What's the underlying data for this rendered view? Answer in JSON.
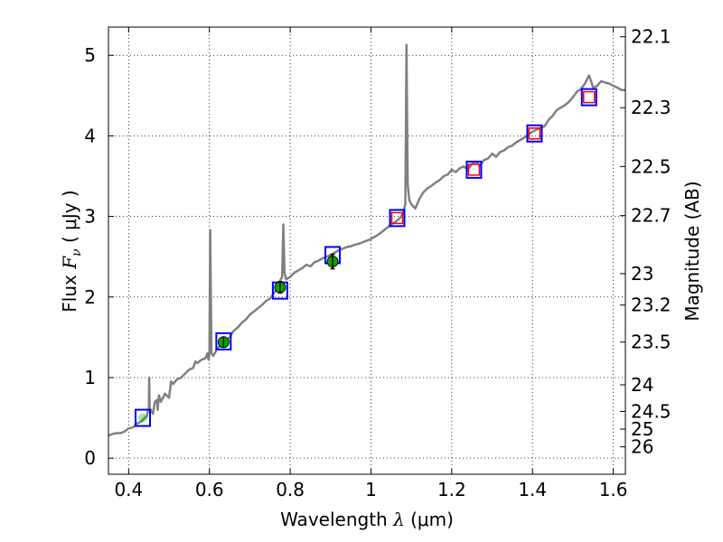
{
  "chart_data": {
    "type": "line",
    "xlabel": {
      "prefix": "Wavelength",
      "symbol": "λ",
      "unit": "(μm)"
    },
    "ylabel": {
      "prefix": "Flux",
      "symbol": "F",
      "subscript": "ν",
      "unit": "( μJy )"
    },
    "y2label": "Magnitude (AB)",
    "xlim": [
      0.35,
      1.63
    ],
    "ylim": [
      -0.2,
      5.35
    ],
    "grid": true,
    "x_ticks": [
      0.4,
      0.6,
      0.8,
      1.0,
      1.2,
      1.4,
      1.6
    ],
    "x_tick_labels": [
      "0.4",
      "0.6",
      "0.8",
      "1",
      "1.2",
      "1.4",
      "1.6"
    ],
    "y_ticks": [
      0,
      1,
      2,
      3,
      4,
      5
    ],
    "y_tick_labels": [
      "0",
      "1",
      "2",
      "3",
      "4",
      "5"
    ],
    "y2_ticks": [
      {
        "label": "22.1",
        "flux": 5.23
      },
      {
        "label": "22.3",
        "flux": 4.35
      },
      {
        "label": "22.5",
        "flux": 3.62
      },
      {
        "label": "22.7",
        "flux": 3.01
      },
      {
        "label": "23",
        "flux": 2.29
      },
      {
        "label": "23.2",
        "flux": 1.9
      },
      {
        "label": "23.5",
        "flux": 1.44
      },
      {
        "label": "24",
        "flux": 0.91
      },
      {
        "label": "24.5",
        "flux": 0.58
      },
      {
        "label": "25",
        "flux": 0.36
      },
      {
        "label": "26",
        "flux": 0.14
      }
    ],
    "series": [
      {
        "kind": "spectrum",
        "color": "#808080",
        "points": [
          [
            0.35,
            0.28
          ],
          [
            0.36,
            0.3
          ],
          [
            0.37,
            0.31
          ],
          [
            0.38,
            0.31
          ],
          [
            0.39,
            0.33
          ],
          [
            0.4,
            0.37
          ],
          [
            0.41,
            0.38
          ],
          [
            0.415,
            0.4
          ],
          [
            0.42,
            0.43
          ],
          [
            0.43,
            0.45
          ],
          [
            0.44,
            0.5
          ],
          [
            0.445,
            0.52
          ],
          [
            0.448,
            0.6
          ],
          [
            0.45,
            0.6
          ],
          [
            0.451,
            1.0
          ],
          [
            0.452,
            0.62
          ],
          [
            0.46,
            0.55
          ],
          [
            0.465,
            0.7
          ],
          [
            0.47,
            0.72
          ],
          [
            0.472,
            0.6
          ],
          [
            0.475,
            0.78
          ],
          [
            0.48,
            0.7
          ],
          [
            0.49,
            0.8
          ],
          [
            0.5,
            0.75
          ],
          [
            0.505,
            0.95
          ],
          [
            0.51,
            0.92
          ],
          [
            0.52,
            0.98
          ],
          [
            0.53,
            1.0
          ],
          [
            0.54,
            1.05
          ],
          [
            0.55,
            1.1
          ],
          [
            0.56,
            1.12
          ],
          [
            0.565,
            1.2
          ],
          [
            0.57,
            1.18
          ],
          [
            0.58,
            1.22
          ],
          [
            0.59,
            1.24
          ],
          [
            0.595,
            1.3
          ],
          [
            0.598,
            1.22
          ],
          [
            0.6,
            1.28
          ],
          [
            0.602,
            2.83
          ],
          [
            0.605,
            1.3
          ],
          [
            0.61,
            1.27
          ],
          [
            0.62,
            1.37
          ],
          [
            0.63,
            1.4
          ],
          [
            0.64,
            1.45
          ],
          [
            0.65,
            1.5
          ],
          [
            0.66,
            1.58
          ],
          [
            0.67,
            1.62
          ],
          [
            0.68,
            1.68
          ],
          [
            0.69,
            1.72
          ],
          [
            0.7,
            1.78
          ],
          [
            0.71,
            1.82
          ],
          [
            0.72,
            1.86
          ],
          [
            0.73,
            1.9
          ],
          [
            0.74,
            1.95
          ],
          [
            0.75,
            1.98
          ],
          [
            0.76,
            2.05
          ],
          [
            0.77,
            2.12
          ],
          [
            0.775,
            2.2
          ],
          [
            0.78,
            2.25
          ],
          [
            0.783,
            2.9
          ],
          [
            0.786,
            2.3
          ],
          [
            0.79,
            2.22
          ],
          [
            0.8,
            2.25
          ],
          [
            0.81,
            2.3
          ],
          [
            0.82,
            2.33
          ],
          [
            0.83,
            2.36
          ],
          [
            0.84,
            2.4
          ],
          [
            0.85,
            2.38
          ],
          [
            0.86,
            2.43
          ],
          [
            0.87,
            2.45
          ],
          [
            0.88,
            2.48
          ],
          [
            0.89,
            2.5
          ],
          [
            0.9,
            2.52
          ],
          [
            0.91,
            2.55
          ],
          [
            0.92,
            2.58
          ],
          [
            0.93,
            2.6
          ],
          [
            0.94,
            2.62
          ],
          [
            0.95,
            2.63
          ],
          [
            0.96,
            2.65
          ],
          [
            0.97,
            2.66
          ],
          [
            0.98,
            2.68
          ],
          [
            0.99,
            2.7
          ],
          [
            1.0,
            2.72
          ],
          [
            1.01,
            2.75
          ],
          [
            1.02,
            2.78
          ],
          [
            1.03,
            2.82
          ],
          [
            1.04,
            2.86
          ],
          [
            1.05,
            2.9
          ],
          [
            1.06,
            2.93
          ],
          [
            1.07,
            2.97
          ],
          [
            1.075,
            3.0
          ],
          [
            1.08,
            3.05
          ],
          [
            1.085,
            3.15
          ],
          [
            1.088,
            5.13
          ],
          [
            1.091,
            3.4
          ],
          [
            1.095,
            3.2
          ],
          [
            1.1,
            3.15
          ],
          [
            1.11,
            3.1
          ],
          [
            1.12,
            3.22
          ],
          [
            1.13,
            3.3
          ],
          [
            1.14,
            3.35
          ],
          [
            1.15,
            3.38
          ],
          [
            1.16,
            3.42
          ],
          [
            1.17,
            3.45
          ],
          [
            1.18,
            3.5
          ],
          [
            1.19,
            3.52
          ],
          [
            1.2,
            3.58
          ],
          [
            1.21,
            3.55
          ],
          [
            1.22,
            3.6
          ],
          [
            1.23,
            3.62
          ],
          [
            1.24,
            3.58
          ],
          [
            1.25,
            3.65
          ],
          [
            1.26,
            3.68
          ],
          [
            1.27,
            3.63
          ],
          [
            1.28,
            3.7
          ],
          [
            1.29,
            3.72
          ],
          [
            1.3,
            3.78
          ],
          [
            1.31,
            3.74
          ],
          [
            1.32,
            3.8
          ],
          [
            1.33,
            3.82
          ],
          [
            1.34,
            3.86
          ],
          [
            1.35,
            3.88
          ],
          [
            1.36,
            3.92
          ],
          [
            1.37,
            3.95
          ],
          [
            1.38,
            3.98
          ],
          [
            1.39,
            4.02
          ],
          [
            1.4,
            4.05
          ],
          [
            1.41,
            4.08
          ],
          [
            1.42,
            4.1
          ],
          [
            1.43,
            4.12
          ],
          [
            1.44,
            4.2
          ],
          [
            1.45,
            4.25
          ],
          [
            1.46,
            4.32
          ],
          [
            1.47,
            4.35
          ],
          [
            1.48,
            4.38
          ],
          [
            1.49,
            4.42
          ],
          [
            1.5,
            4.48
          ],
          [
            1.51,
            4.55
          ],
          [
            1.52,
            4.58
          ],
          [
            1.53,
            4.65
          ],
          [
            1.54,
            4.75
          ],
          [
            1.545,
            4.68
          ],
          [
            1.55,
            4.6
          ],
          [
            1.56,
            4.62
          ],
          [
            1.57,
            4.68
          ],
          [
            1.58,
            4.66
          ],
          [
            1.59,
            4.65
          ],
          [
            1.6,
            4.62
          ],
          [
            1.61,
            4.6
          ],
          [
            1.62,
            4.57
          ],
          [
            1.63,
            4.57
          ]
        ]
      },
      {
        "kind": "model-boxes",
        "color": "#0000ff",
        "points": [
          [
            0.435,
            0.5
          ],
          [
            0.635,
            1.45
          ],
          [
            0.775,
            2.08
          ],
          [
            0.905,
            2.52
          ],
          [
            1.065,
            2.98
          ],
          [
            1.255,
            3.58
          ],
          [
            1.405,
            4.03
          ],
          [
            1.54,
            4.48
          ]
        ]
      },
      {
        "kind": "observed-squares",
        "color": "#ff0000",
        "points": [
          [
            1.065,
            2.98
          ],
          [
            1.255,
            3.58
          ],
          [
            1.405,
            4.03
          ],
          [
            1.54,
            4.48
          ]
        ]
      },
      {
        "kind": "observed-circles",
        "color": "#00aa00",
        "points": [
          {
            "x": 0.435,
            "y": 0.5,
            "err": 0.0
          },
          {
            "x": 0.635,
            "y": 1.44,
            "err": 0.06
          },
          {
            "x": 0.775,
            "y": 2.12,
            "err": 0.07
          },
          {
            "x": 0.905,
            "y": 2.44,
            "err": 0.09
          }
        ]
      }
    ]
  }
}
